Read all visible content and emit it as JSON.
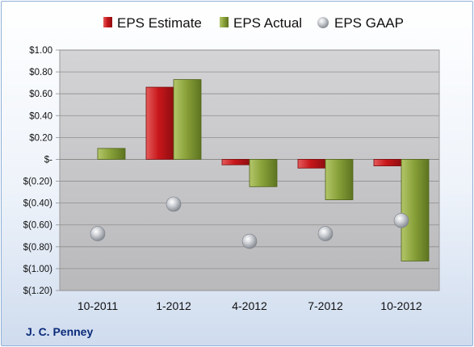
{
  "company": "J. C. Penney",
  "chart_data": {
    "type": "bar",
    "categories": [
      "10-2011",
      "1-2012",
      "4-2012",
      "7-2012",
      "10-2012"
    ],
    "series": [
      {
        "name": "EPS Estimate",
        "type": "bar",
        "color": "#cc1f1f",
        "values": [
          null,
          0.66,
          -0.05,
          -0.08,
          -0.06
        ]
      },
      {
        "name": "EPS Actual",
        "type": "bar",
        "color": "#8aa23a",
        "values": [
          0.1,
          0.73,
          -0.25,
          -0.37,
          -0.93
        ]
      },
      {
        "name": "EPS GAAP",
        "type": "scatter",
        "color": "#b8bcc2",
        "values": [
          -0.68,
          -0.41,
          -0.75,
          -0.68,
          -0.56
        ]
      }
    ],
    "yticks": [
      "$1.00",
      "$0.80",
      "$0.60",
      "$0.40",
      "$0.20",
      "$-",
      "$(0.20)",
      "$(0.40)",
      "$(0.60)",
      "$(0.80)",
      "$(1.00)",
      "$(1.20)"
    ],
    "ylim": [
      -1.2,
      1.0
    ],
    "grid": true,
    "legend": "top"
  }
}
